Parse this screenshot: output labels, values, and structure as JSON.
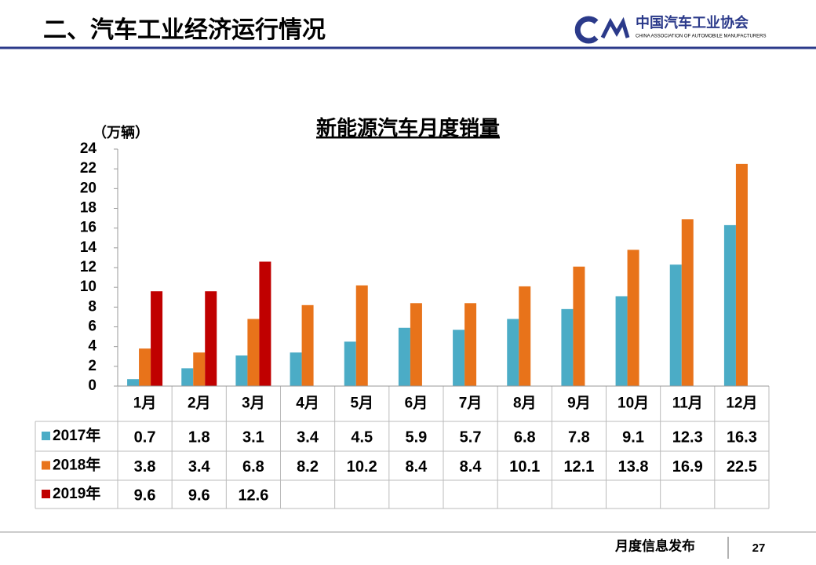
{
  "header": {
    "title": "二、汽车工业经济运行情况",
    "org_name": "中国汽车工业协会",
    "org_name_en": "CHINA ASSOCIATION OF AUTOMOBILE MANUFACTURERS"
  },
  "footer": {
    "text": "月度信息发布",
    "page": "27"
  },
  "chart_data": {
    "type": "bar",
    "title": "新能源汽车月度销量",
    "y_label": "（万辆）",
    "categories": [
      "1月",
      "2月",
      "3月",
      "4月",
      "5月",
      "6月",
      "7月",
      "8月",
      "9月",
      "10月",
      "11月",
      "12月"
    ],
    "series": [
      {
        "name": "2017年",
        "color": "#4bacc6",
        "values": [
          0.7,
          1.8,
          3.1,
          3.4,
          4.5,
          5.9,
          5.7,
          6.8,
          7.8,
          9.1,
          12.3,
          16.3
        ]
      },
      {
        "name": "2018年",
        "color": "#e8731a",
        "values": [
          3.8,
          3.4,
          6.8,
          8.2,
          10.2,
          8.4,
          8.4,
          10.1,
          12.1,
          13.8,
          16.9,
          22.5
        ]
      },
      {
        "name": "2019年",
        "color": "#c00000",
        "values": [
          9.6,
          9.6,
          12.6,
          null,
          null,
          null,
          null,
          null,
          null,
          null,
          null,
          null
        ]
      }
    ],
    "ylim": [
      0,
      24
    ],
    "yticks": [
      0,
      2,
      4,
      6,
      8,
      10,
      12,
      14,
      16,
      18,
      20,
      22,
      24
    ],
    "data_table": true
  }
}
